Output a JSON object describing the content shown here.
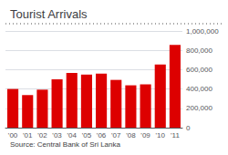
{
  "chart_data": {
    "type": "bar",
    "title": "Tourist Arrivals",
    "source": "Source: Central Bank of Sri Lanka",
    "categories": [
      "'00",
      "'01",
      "'02",
      "'03",
      "'04",
      "'05",
      "'06",
      "'07",
      "'08",
      "'09",
      "'10",
      "'11"
    ],
    "values": [
      400000,
      337000,
      393000,
      501000,
      566000,
      549000,
      559000,
      494000,
      438000,
      448000,
      654000,
      856000
    ],
    "color": "#dd0000",
    "ylim": [
      0,
      1000000
    ],
    "yticks": [
      0,
      {
        "value": 200000,
        "label": "200,000"
      },
      {
        "value": 400000,
        "label": "400,000"
      },
      {
        "value": 600000,
        "label": "600,000"
      },
      {
        "value": 800000,
        "label": "800,000"
      },
      {
        "value": 1000000,
        "label": "1,000,000"
      }
    ],
    "grid": true
  }
}
